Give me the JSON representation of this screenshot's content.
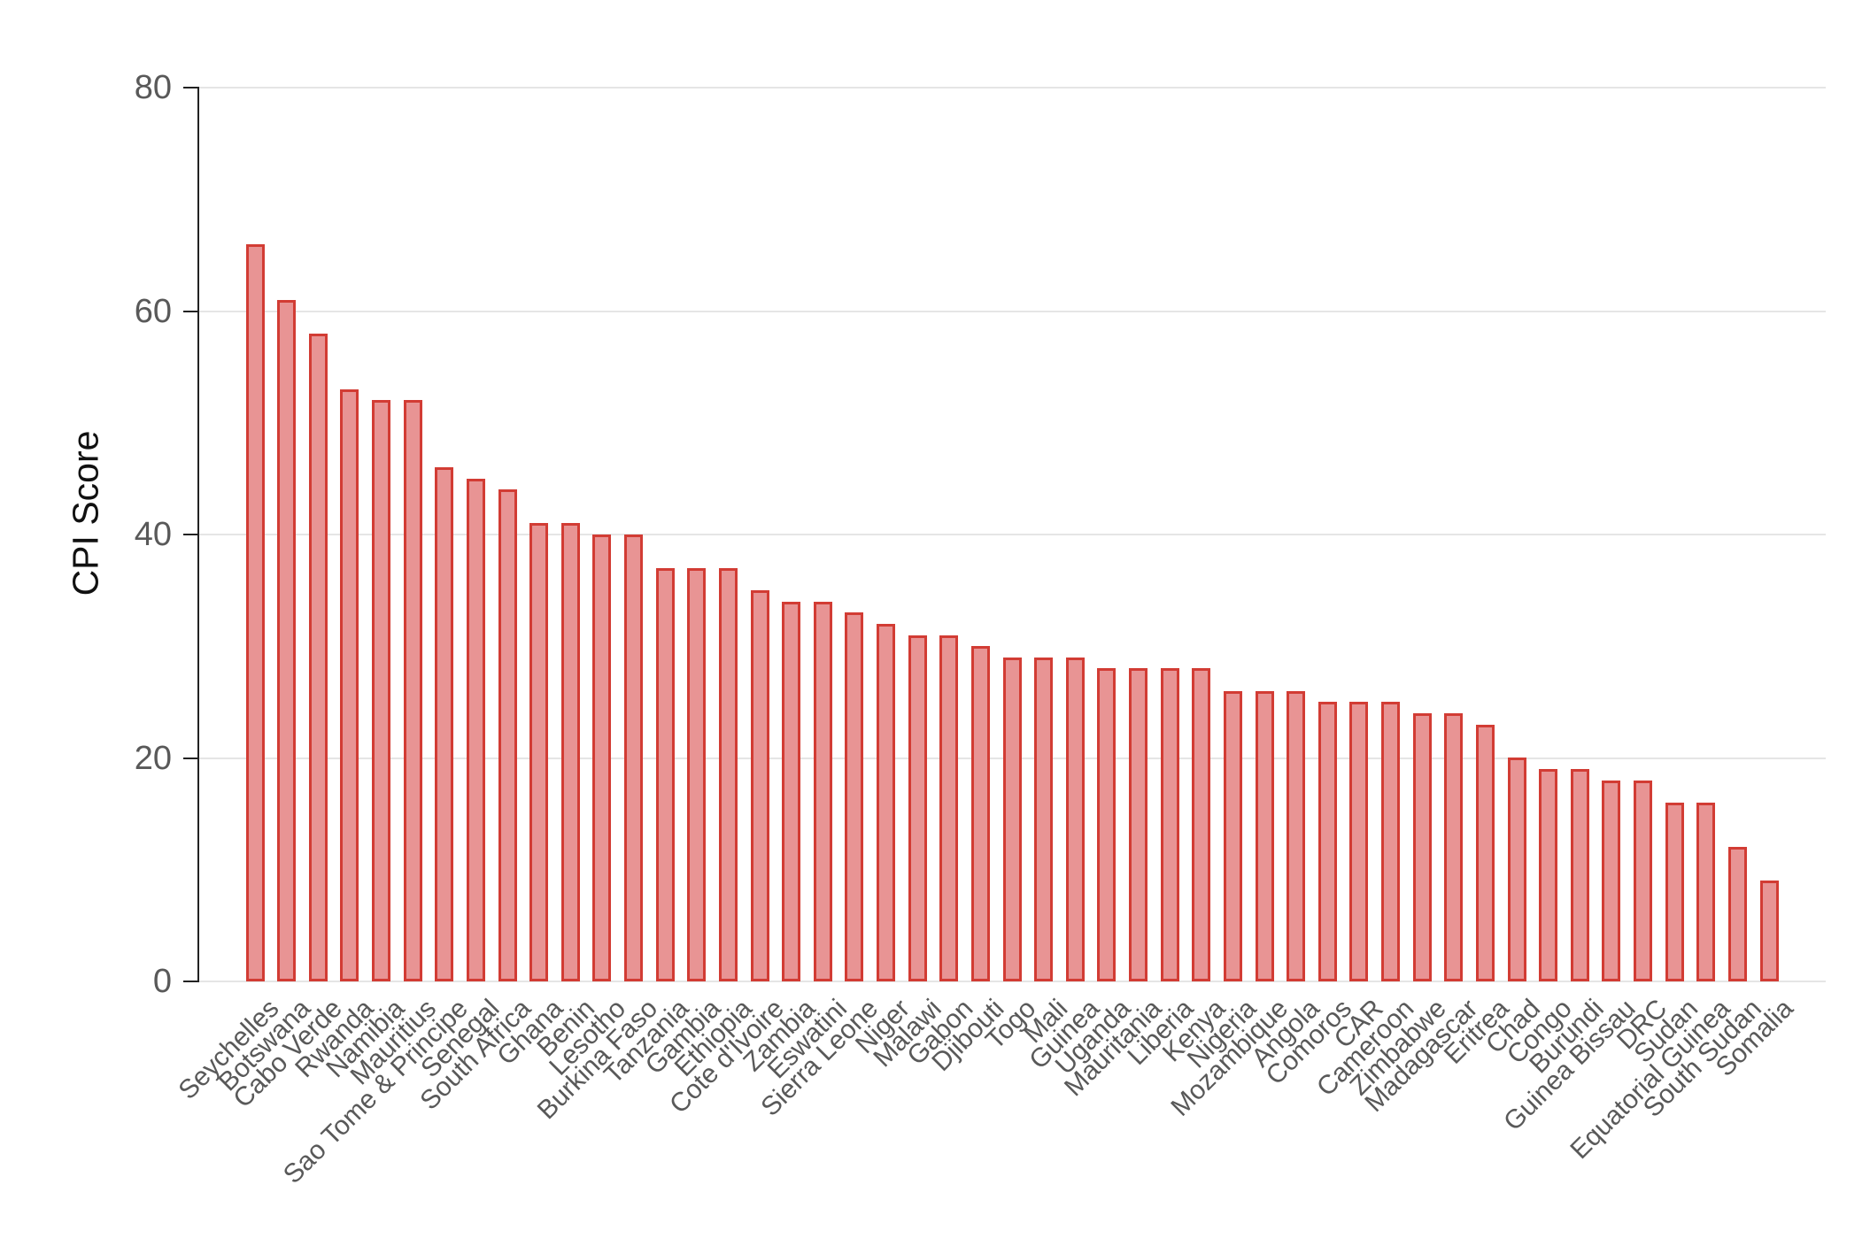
{
  "chart_data": {
    "type": "bar",
    "title": "",
    "xlabel": "",
    "ylabel": "CPI Score",
    "ylim": [
      0,
      80
    ],
    "yticks": [
      0,
      20,
      40,
      60,
      80
    ],
    "grid": true,
    "legend": false,
    "categories": [
      "Seychelles",
      "Botswana",
      "Cabo Verde",
      "Rwanda",
      "Namibia",
      "Mauritius",
      "Sao Tome & Principe",
      "Senegal",
      "South Africa",
      "Ghana",
      "Benin",
      "Lesotho",
      "Burkina Faso",
      "Tanzania",
      "Gambia",
      "Ethiopia",
      "Cote d'Ivoire",
      "Zambia",
      "Eswatini",
      "Sierra Leone",
      "Niger",
      "Malawi",
      "Gabon",
      "Djibouti",
      "Togo",
      "Mali",
      "Guinea",
      "Uganda",
      "Mauritania",
      "Liberia",
      "Kenya",
      "Nigeria",
      "Mozambique",
      "Angola",
      "Comoros",
      "CAR",
      "Cameroon",
      "Zimbabwe",
      "Madagascar",
      "Eritrea",
      "Chad",
      "Congo",
      "Burundi",
      "Guinea Bissau",
      "DRC",
      "Sudan",
      "Equatorial Guinea",
      "South Sudan",
      "Somalia"
    ],
    "values": [
      66,
      61,
      58,
      53,
      52,
      52,
      46,
      45,
      44,
      41,
      41,
      40,
      40,
      37,
      37,
      37,
      35,
      34,
      34,
      33,
      32,
      31,
      31,
      30,
      29,
      29,
      29,
      28,
      28,
      28,
      28,
      26,
      26,
      26,
      25,
      25,
      25,
      24,
      24,
      23,
      20,
      19,
      19,
      18,
      18,
      16,
      16,
      12,
      9
    ],
    "colors": {
      "background": "#ffffff",
      "bar_fill": "#e89494",
      "bar_border": "#d23c34",
      "gridline": "#e5e5e5",
      "axis_line": "#222222",
      "tick_mark": "#222222",
      "tick_label": "#595959",
      "axis_title": "#111111"
    }
  }
}
